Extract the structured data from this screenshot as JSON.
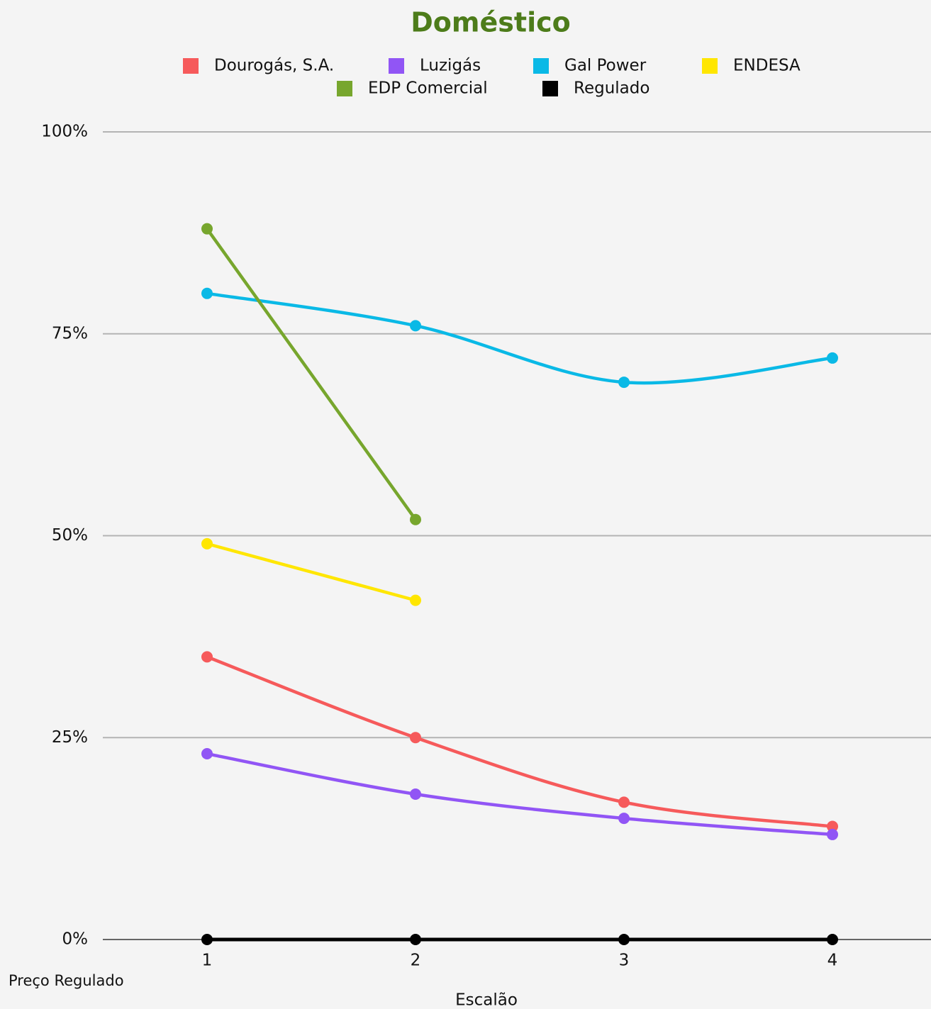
{
  "chart_data": {
    "type": "line",
    "title": "Doméstico",
    "x_label": "Escalão",
    "annotation": "Preço Regulado",
    "categories": [
      "1",
      "2",
      "3",
      "4"
    ],
    "series": [
      {
        "name": "Dourogás, S.A.",
        "color": "#f65a5b",
        "values": [
          35,
          25,
          17,
          14
        ]
      },
      {
        "name": "Luzigás",
        "color": "#9155f5",
        "values": [
          23,
          18,
          15,
          13
        ]
      },
      {
        "name": "Gal Power",
        "color": "#0ab9e6",
        "values": [
          80,
          76,
          69,
          72
        ]
      },
      {
        "name": "ENDESA",
        "color": "#ffe600",
        "values": [
          49,
          42,
          null,
          null
        ]
      },
      {
        "name": "EDP Comercial",
        "color": "#77a62d",
        "values": [
          88,
          52,
          null,
          null
        ]
      },
      {
        "name": "Regulado",
        "color": "#000000",
        "values": [
          0,
          0,
          0,
          0
        ]
      }
    ],
    "ylim": [
      0,
      100
    ],
    "yticks": [
      {
        "value": 0,
        "label": "0%"
      },
      {
        "value": 25,
        "label": "25%"
      },
      {
        "value": 50,
        "label": "50%"
      },
      {
        "value": 75,
        "label": "75%"
      },
      {
        "value": 100,
        "label": "100%"
      }
    ],
    "grid": true,
    "legend": "top",
    "smooth": true
  }
}
